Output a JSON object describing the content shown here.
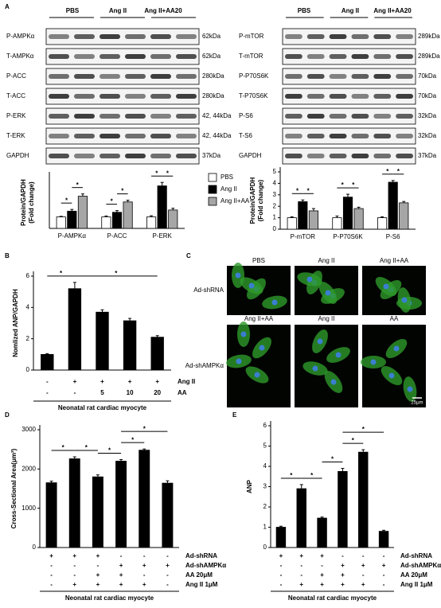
{
  "panels": [
    "A",
    "B",
    "C",
    "D",
    "E"
  ],
  "blots": [
    {
      "header": [
        "PBS",
        "Ang II",
        "Ang II+AA20"
      ],
      "rows": [
        {
          "label": "P-AMPKα",
          "size": "62kDa"
        },
        {
          "label": "T-AMPKα",
          "size": "62kDa"
        },
        {
          "label": "P-ACC",
          "size": "280kDa"
        },
        {
          "label": "T-ACC",
          "size": "280kDa"
        },
        {
          "label": "P-ERK",
          "size": "42, 44kDa"
        },
        {
          "label": "T-ERK",
          "size": "42, 44kDa"
        },
        {
          "label": "GAPDH",
          "size": "37kDa"
        }
      ]
    },
    {
      "header": [
        "PBS",
        "Ang II",
        "Ang II+AA20"
      ],
      "rows": [
        {
          "label": "P-mTOR",
          "size": "289kDa"
        },
        {
          "label": "T-mTOR",
          "size": "289kDa"
        },
        {
          "label": "P-P70S6K",
          "size": "70kDa"
        },
        {
          "label": "T-P70S6K",
          "size": "70kDa"
        },
        {
          "label": "P-S6",
          "size": "32kDa"
        },
        {
          "label": "T-S6",
          "size": "32kDa"
        },
        {
          "label": "GAPDH",
          "size": "37kDa"
        }
      ]
    }
  ],
  "micrographs": {
    "rows": [
      "Ad-shRNA",
      "Ad-shAMPKα"
    ],
    "columns": [
      [
        "PBS",
        "Ang II",
        "Ang II+AA"
      ],
      [
        "Ang II+AA",
        "Ang II",
        "AA"
      ]
    ],
    "scale": "25μm"
  },
  "chart_data": [
    {
      "type": "grouped-bar",
      "ylabel": [
        "Protein/GAPDH",
        "(Fold change)"
      ],
      "categories": [
        "P-AMPKα",
        "P-ACC",
        "P-ERK"
      ],
      "series": [
        {
          "name": "PBS",
          "color": "#ffffff",
          "values": [
            1,
            1,
            1
          ],
          "errors": [
            0.05,
            0.08,
            0.1
          ]
        },
        {
          "name": "Ang II",
          "color": "#000000",
          "values": [
            1.5,
            1.4,
            3.7
          ],
          "errors": [
            0.15,
            0.15,
            0.3
          ]
        },
        {
          "name": "Ang II+AA",
          "color": "#a6a6a6",
          "values": [
            2.8,
            2.3,
            1.6
          ],
          "errors": [
            0.2,
            0.15,
            0.15
          ]
        }
      ],
      "ylim": [
        0,
        4.5
      ],
      "legend": "right",
      "annotations": [
        "*",
        "*",
        "*",
        "*",
        "*",
        "*"
      ]
    },
    {
      "type": "grouped-bar",
      "ylabel": [
        "Protein/GAPDH",
        "(Fold change)"
      ],
      "categories": [
        "P-mTOR",
        "P-P70S6K",
        "P-S6"
      ],
      "series": [
        {
          "color": "#ffffff",
          "values": [
            1,
            1,
            1
          ],
          "errors": [
            0.08,
            0.15,
            0.08
          ]
        },
        {
          "color": "#000000",
          "values": [
            2.4,
            2.8,
            4.1
          ],
          "errors": [
            0.15,
            0.25,
            0.15
          ]
        },
        {
          "color": "#a6a6a6",
          "values": [
            1.6,
            1.8,
            2.3
          ],
          "errors": [
            0.2,
            0.12,
            0.12
          ]
        }
      ],
      "ylim": [
        0,
        5
      ],
      "yticks": [
        0,
        1,
        2,
        3,
        4,
        5
      ],
      "annotations": [
        "*",
        "*",
        "*",
        "*",
        "*",
        "*"
      ]
    },
    {
      "type": "bar",
      "ylabel": "Nomlized ANP/GAPDH",
      "color": "#000000",
      "values": [
        1,
        5.2,
        3.7,
        3.15,
        2.1
      ],
      "errors": [
        0.05,
        0.4,
        0.15,
        0.15,
        0.1
      ],
      "ylim": [
        0,
        6
      ],
      "yticks": [
        0,
        2,
        4,
        6
      ],
      "conditions": [
        {
          "label": "Ang II",
          "cells": [
            "-",
            "+",
            "+",
            "+",
            "+"
          ]
        },
        {
          "label": "AA",
          "cells": [
            "-",
            "-",
            "5",
            "10",
            "20"
          ]
        }
      ],
      "xlabel": "Neonatal rat cardiac myocyte",
      "annotations": [
        "*",
        "*"
      ]
    },
    {
      "type": "bar",
      "ylabel": "Cross-Sectional Area(μm²)",
      "color": "#000000",
      "values": [
        1650,
        2260,
        1800,
        2200,
        2480,
        1640
      ],
      "errors": [
        40,
        50,
        50,
        40,
        30,
        60
      ],
      "ylim": [
        0,
        3000
      ],
      "yticks": [
        0,
        1000,
        2000,
        3000
      ],
      "conditions": [
        {
          "label": "Ad-shRNA",
          "cells": [
            "+",
            "+",
            "+",
            "-",
            "-",
            "-"
          ]
        },
        {
          "label": "Ad-shAMPKα",
          "cells": [
            "-",
            "-",
            "-",
            "+",
            "+",
            "+"
          ]
        },
        {
          "label": "AA 20μM",
          "cells": [
            "-",
            "-",
            "+",
            "+",
            "-",
            "-"
          ]
        },
        {
          "label": "Ang II 1μM",
          "cells": [
            "-",
            "+",
            "+",
            "+",
            "+",
            "-"
          ]
        }
      ],
      "xlabel": "Neonatal rat cardiac myocyte",
      "annotations": [
        "*",
        "*",
        "*",
        "*",
        "*"
      ]
    },
    {
      "type": "bar",
      "ylabel": "ANP",
      "color": "#000000",
      "values": [
        1,
        2.9,
        1.45,
        3.75,
        4.7,
        0.8
      ],
      "errors": [
        0.05,
        0.2,
        0.05,
        0.15,
        0.12,
        0.05
      ],
      "ylim": [
        0,
        6
      ],
      "yticks": [
        0,
        1,
        2,
        3,
        4,
        5,
        6
      ],
      "conditions": [
        {
          "label": "Ad-shRNA",
          "cells": [
            "+",
            "+",
            "+",
            "-",
            "-",
            "-"
          ]
        },
        {
          "label": "Ad-shAMPKα",
          "cells": [
            "-",
            "-",
            "-",
            "+",
            "+",
            "+"
          ]
        },
        {
          "label": "AA 20μM",
          "cells": [
            "-",
            "-",
            "+",
            "+",
            "-",
            "-"
          ]
        },
        {
          "label": "Ang II 1μM",
          "cells": [
            "-",
            "+",
            "+",
            "+",
            "+",
            "-"
          ]
        }
      ],
      "xlabel": "Neonatal rat cardiac myocyte",
      "annotations": [
        "*",
        "*",
        "*",
        "*",
        "*"
      ]
    }
  ]
}
